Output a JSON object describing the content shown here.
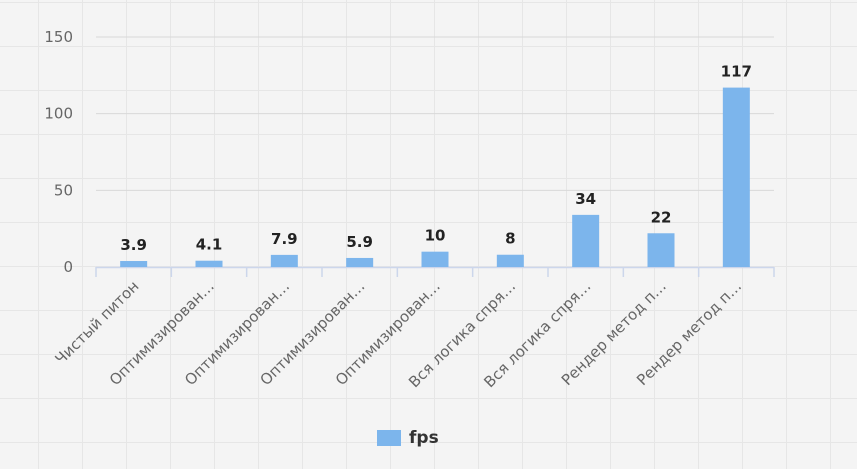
{
  "chart_data": {
    "type": "bar",
    "categories": [
      "Чистый питон",
      "Оптимизирован…",
      "Оптимизирован…",
      "Оптимизирован…",
      "Оптимизирован…",
      "Вся логика спря…",
      "Вся логика спря…",
      "Рендер метод п…",
      "Рендер метод п…"
    ],
    "series": [
      {
        "name": "fps",
        "values": [
          3.9,
          4.1,
          7.9,
          5.9,
          10,
          8,
          34,
          22,
          117
        ],
        "color": "#7cb5ec"
      }
    ],
    "data_labels": [
      "3.9",
      "4.1",
      "7.9",
      "5.9",
      "10",
      "8",
      "34",
      "22",
      "117"
    ],
    "ylim": [
      0,
      150
    ],
    "yticks": [
      0,
      50,
      100,
      150
    ],
    "grid": true,
    "legend": "bottom-center",
    "title": "",
    "xlabel": "",
    "ylabel": ""
  }
}
